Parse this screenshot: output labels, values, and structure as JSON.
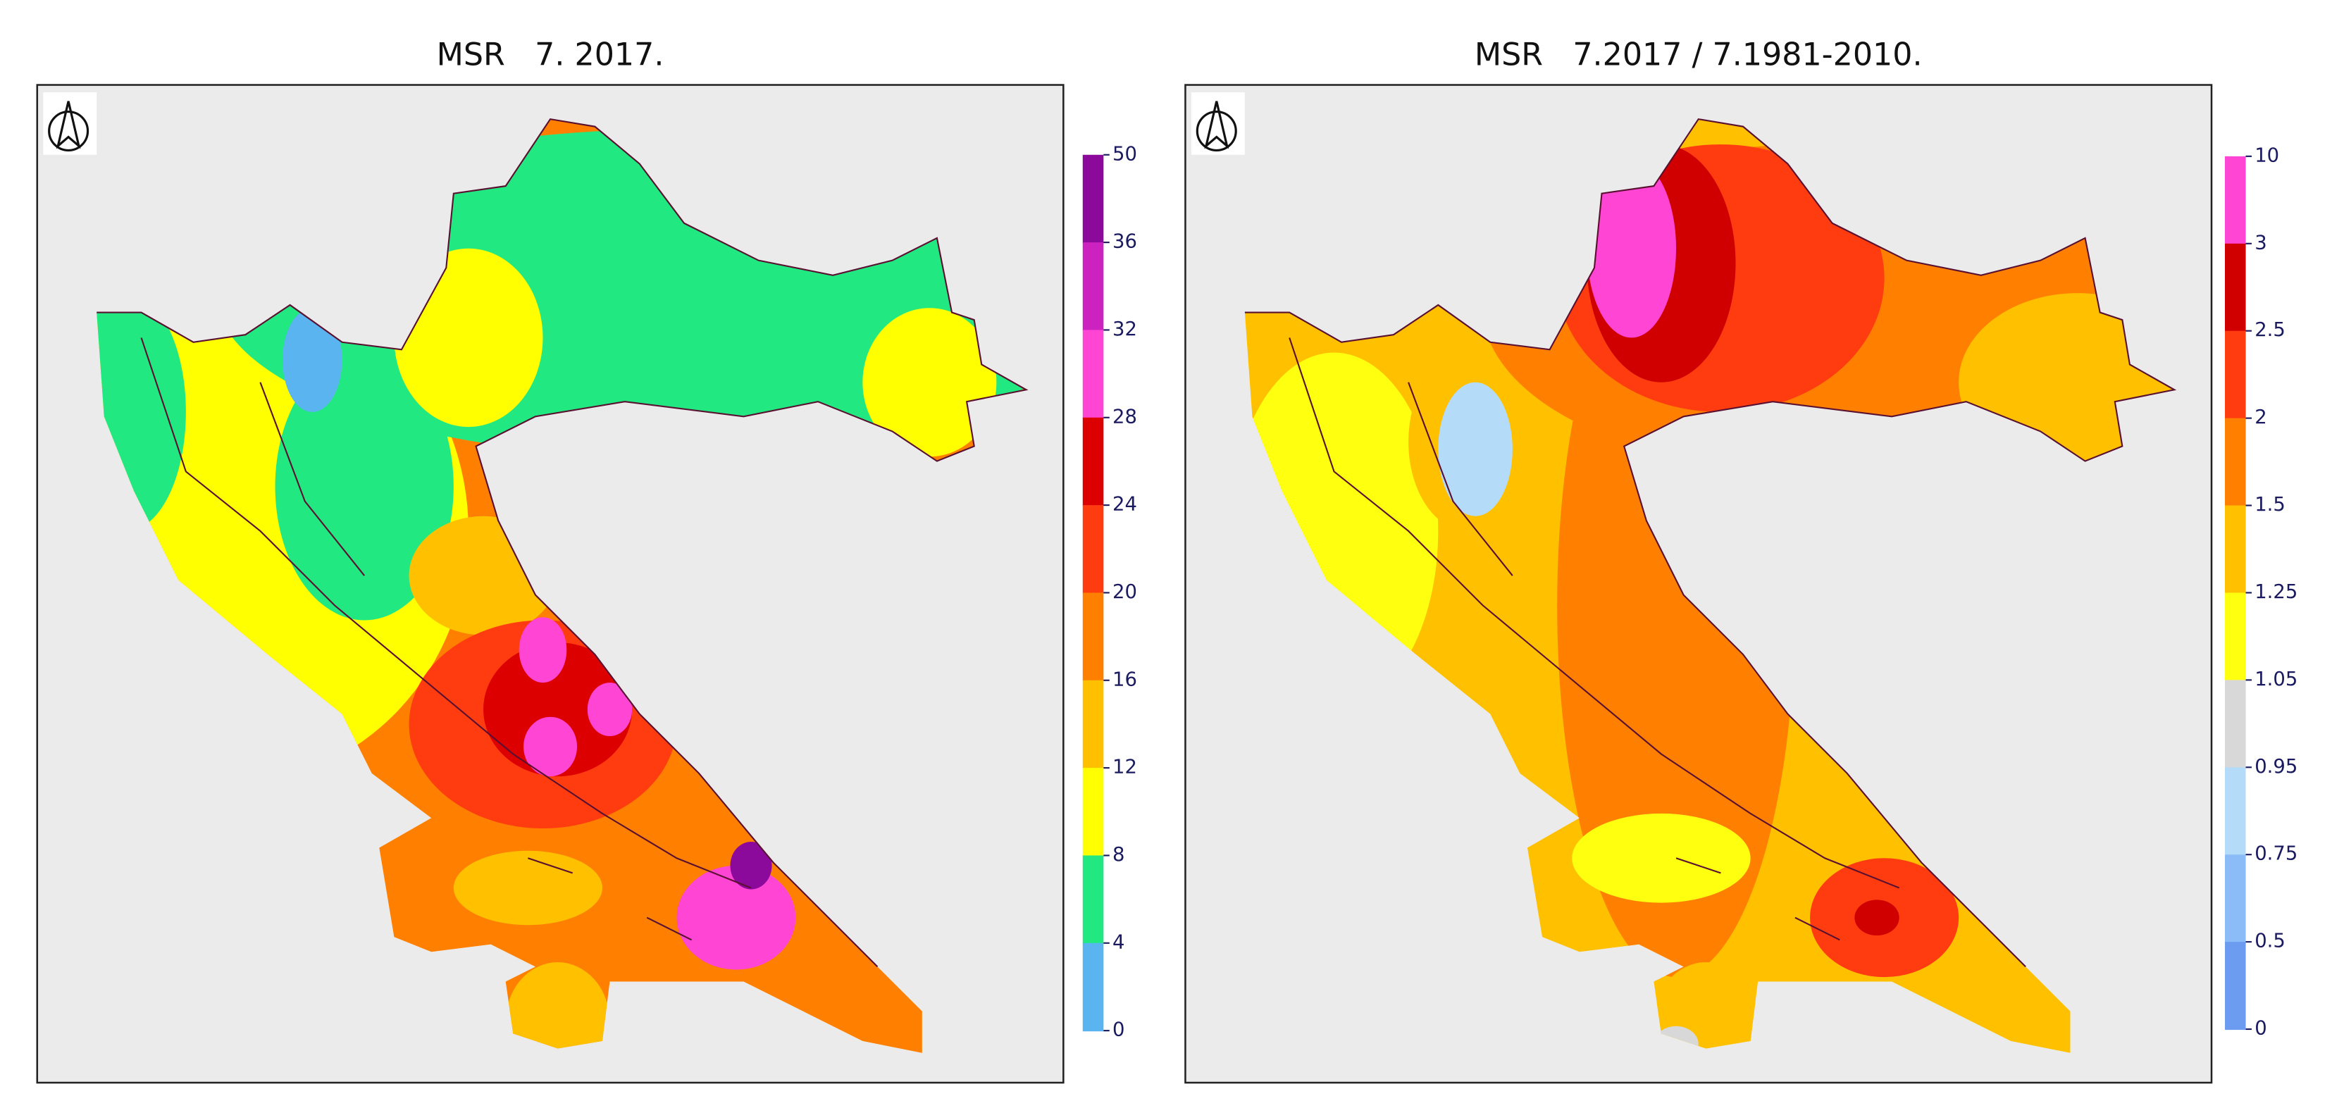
{
  "maps": [
    {
      "title": "MSR   7. 2017.",
      "colorbar": {
        "ticks": [
          50,
          36,
          32,
          28,
          24,
          20,
          16,
          12,
          8,
          4,
          0
        ],
        "colors": [
          "#8b0a9b",
          "#cc22bf",
          "#ff45d4",
          "#dd0000",
          "#ff3c10",
          "#ff8000",
          "#ffc000",
          "#ffff00",
          "#22e882",
          "#5ab4f0"
        ]
      }
    },
    {
      "title": "MSR   7.2017 / 7.1981-2010.",
      "colorbar": {
        "ticks": [
          10,
          3,
          2.5,
          2,
          1.5,
          1.25,
          1.05,
          0.95,
          0.75,
          0.5,
          0
        ],
        "colors": [
          "#ff45d4",
          "#d00000",
          "#ff3c10",
          "#ff8000",
          "#ffc000",
          "#ffff10",
          "#d8d8d8",
          "#b4dcf8",
          "#8cbcf8",
          "#6c9cf0"
        ]
      }
    }
  ]
}
